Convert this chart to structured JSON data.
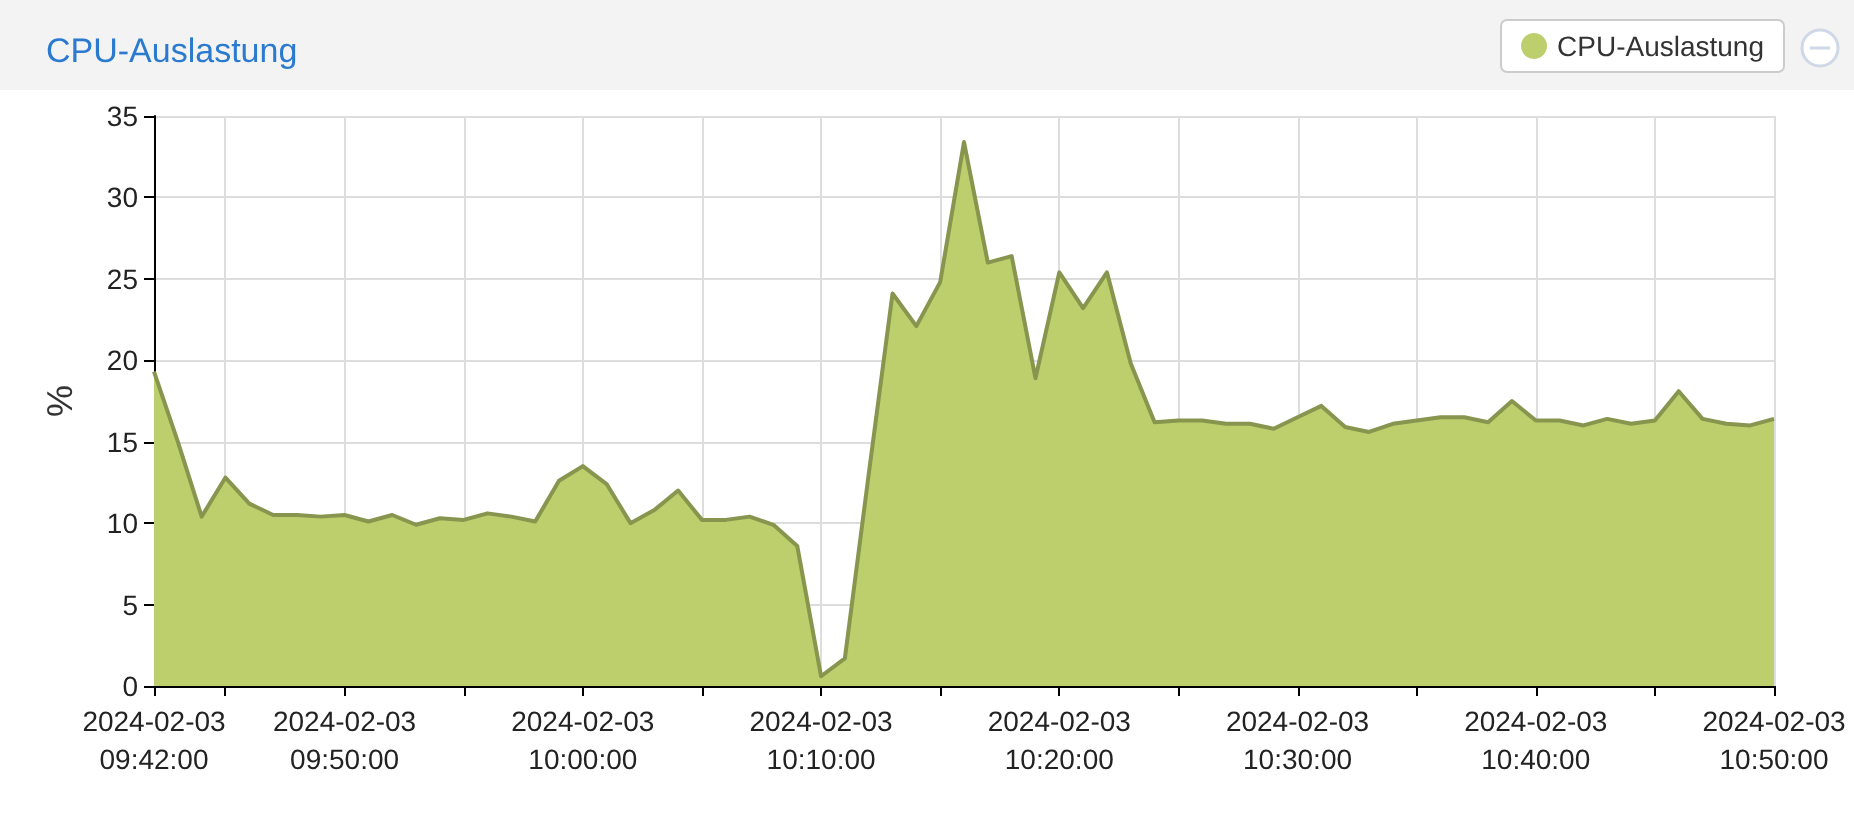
{
  "chart_data": {
    "type": "area",
    "title": "CPU-Auslastung",
    "ylabel": "%",
    "legend": "top right",
    "grid": true,
    "x": [
      "2024-02-03T09:42",
      "2024-02-03T09:43",
      "2024-02-03T09:44",
      "2024-02-03T09:45",
      "2024-02-03T09:46",
      "2024-02-03T09:47",
      "2024-02-03T09:48",
      "2024-02-03T09:49",
      "2024-02-03T09:50",
      "2024-02-03T09:51",
      "2024-02-03T09:52",
      "2024-02-03T09:53",
      "2024-02-03T09:54",
      "2024-02-03T09:55",
      "2024-02-03T09:56",
      "2024-02-03T09:57",
      "2024-02-03T09:58",
      "2024-02-03T09:59",
      "2024-02-03T10:00",
      "2024-02-03T10:01",
      "2024-02-03T10:02",
      "2024-02-03T10:03",
      "2024-02-03T10:04",
      "2024-02-03T10:05",
      "2024-02-03T10:06",
      "2024-02-03T10:07",
      "2024-02-03T10:08",
      "2024-02-03T10:09",
      "2024-02-03T10:10",
      "2024-02-03T10:11",
      "2024-02-03T10:12",
      "2024-02-03T10:13",
      "2024-02-03T10:14",
      "2024-02-03T10:15",
      "2024-02-03T10:16",
      "2024-02-03T10:17",
      "2024-02-03T10:18",
      "2024-02-03T10:19",
      "2024-02-03T10:20",
      "2024-02-03T10:21",
      "2024-02-03T10:22",
      "2024-02-03T10:23",
      "2024-02-03T10:24",
      "2024-02-03T10:25",
      "2024-02-03T10:26",
      "2024-02-03T10:27",
      "2024-02-03T10:28",
      "2024-02-03T10:29",
      "2024-02-03T10:30",
      "2024-02-03T10:31",
      "2024-02-03T10:32",
      "2024-02-03T10:33",
      "2024-02-03T10:34",
      "2024-02-03T10:35",
      "2024-02-03T10:36",
      "2024-02-03T10:37",
      "2024-02-03T10:38",
      "2024-02-03T10:39",
      "2024-02-03T10:40",
      "2024-02-03T10:41",
      "2024-02-03T10:42",
      "2024-02-03T10:43",
      "2024-02-03T10:44",
      "2024-02-03T10:45",
      "2024-02-03T10:46",
      "2024-02-03T10:47",
      "2024-02-03T10:48",
      "2024-02-03T10:49",
      "2024-02-03T10:50"
    ],
    "series": [
      {
        "name": "CPU-Auslastung",
        "color": "#bccf6c",
        "values": [
          19.3,
          15.0,
          10.4,
          12.8,
          11.2,
          10.5,
          10.5,
          10.4,
          10.5,
          10.1,
          10.5,
          9.9,
          10.3,
          10.2,
          10.6,
          10.4,
          10.1,
          12.6,
          13.5,
          12.4,
          10.0,
          10.8,
          12.0,
          10.2,
          10.2,
          10.4,
          9.9,
          8.6,
          0.6,
          1.7,
          13,
          24.1,
          22.1,
          24.8,
          33.4,
          26.0,
          26.4,
          18.9,
          25.4,
          23.2,
          25.4,
          19.8,
          16.2,
          16.3,
          16.3,
          16.1,
          16.1,
          15.8,
          16.5,
          17.2,
          15.9,
          15.6,
          16.1,
          16.3,
          16.5,
          16.5,
          16.2,
          17.5,
          16.3,
          16.3,
          16.0,
          16.4,
          16.1,
          16.3,
          18.1,
          16.4,
          16.1,
          16.0,
          16.4
        ]
      }
    ],
    "xlim": [
      "2024-02-03T09:42",
      "2024-02-03T10:50"
    ],
    "xticks": [
      {
        "value": "2024-02-03T09:42",
        "label": "2024-02-03\n09:42:00"
      },
      {
        "value": "2024-02-03T09:45",
        "label": null
      },
      {
        "value": "2024-02-03T09:50",
        "label": "2024-02-03\n09:50:00"
      },
      {
        "value": "2024-02-03T09:55",
        "label": null
      },
      {
        "value": "2024-02-03T10:00",
        "label": "2024-02-03\n10:00:00"
      },
      {
        "value": "2024-02-03T10:05",
        "label": null
      },
      {
        "value": "2024-02-03T10:10",
        "label": "2024-02-03\n10:10:00"
      },
      {
        "value": "2024-02-03T10:15",
        "label": null
      },
      {
        "value": "2024-02-03T10:20",
        "label": "2024-02-03\n10:20:00"
      },
      {
        "value": "2024-02-03T10:25",
        "label": null
      },
      {
        "value": "2024-02-03T10:30",
        "label": "2024-02-03\n10:30:00"
      },
      {
        "value": "2024-02-03T10:35",
        "label": null
      },
      {
        "value": "2024-02-03T10:40",
        "label": "2024-02-03\n10:40:00"
      },
      {
        "value": "2024-02-03T10:45",
        "label": null
      },
      {
        "value": "2024-02-03T10:50",
        "label": "2024-02-03\n10:50:00"
      }
    ],
    "ylim": [
      0,
      35
    ],
    "yticks": [
      0,
      5,
      10,
      15,
      20,
      25,
      30,
      35
    ]
  }
}
